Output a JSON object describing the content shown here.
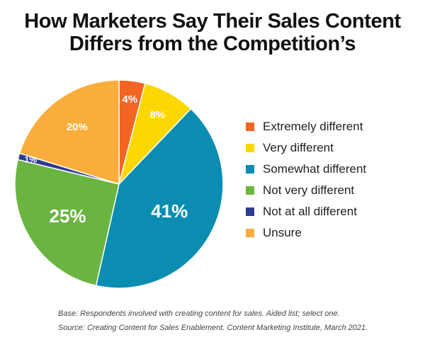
{
  "chart_data": {
    "type": "pie",
    "title": "How Marketers Say Their Sales Content Differs from the Competition’s",
    "title_lines": [
      "How Marketers Say Their Sales Content",
      "Differs from the Competition’s"
    ],
    "slices": [
      {
        "label": "Extremely different",
        "value": 4,
        "display": "4%",
        "color": "#f26522"
      },
      {
        "label": "Very different",
        "value": 8,
        "display": "8%",
        "color": "#fdd700"
      },
      {
        "label": "Somewhat different",
        "value": 41,
        "display": "41%",
        "color": "#0b8db2"
      },
      {
        "label": "Not very different",
        "value": 25,
        "display": "25%",
        "color": "#6ab541"
      },
      {
        "label": "Not at all different",
        "value": 1,
        "display": "1%",
        "color": "#2d3b8f"
      },
      {
        "label": "Unsure",
        "value": 20,
        "display": "20%",
        "color": "#fbae3c"
      }
    ],
    "legend_position": "right"
  },
  "footnotes": {
    "base": "Base: Respondents involved with creating content for sales. Aided list; select one.",
    "source": "Source: Creating Content for Sales Enablement. Content Marketing Institute, March 2021."
  }
}
